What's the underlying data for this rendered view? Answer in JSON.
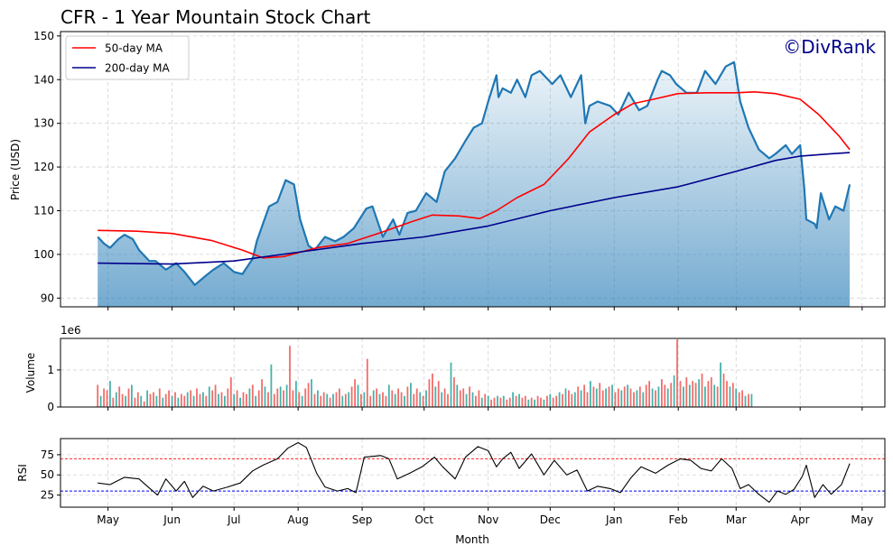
{
  "chart_data": {
    "type": "line",
    "title": "CFR - 1 Year Mountain Stock Chart",
    "watermark": "©DivRank",
    "xlabel": "Month",
    "months": [
      "May",
      "Jun",
      "Jul",
      "Aug",
      "Sep",
      "Oct",
      "Nov",
      "Dec",
      "Jan",
      "Feb",
      "Mar",
      "Apr",
      "May"
    ],
    "date_range": [
      "2024-04-26",
      "2025-04-25"
    ],
    "colors": {
      "price": "#1f77b4",
      "ma50": "#ff0000",
      "ma200": "#00008b",
      "volume_up": "#26a69a",
      "volume_down": "#ef5350",
      "rsi": "#000000",
      "overbought": "#ff0000",
      "oversold": "#0000ff"
    },
    "price_panel": {
      "ylabel": "Price (USD)",
      "ylim": [
        88,
        151
      ],
      "yticks": [
        "90",
        "100",
        "110",
        "120",
        "130",
        "140",
        "150"
      ],
      "legend_position": "top-left",
      "series": [
        {
          "name": "Price",
          "x": [
            "2024-04-26",
            "2024-04-29",
            "2024-05-02",
            "2024-05-06",
            "2024-05-09",
            "2024-05-13",
            "2024-05-16",
            "2024-05-21",
            "2024-05-24",
            "2024-05-29",
            "2024-06-03",
            "2024-06-07",
            "2024-06-12",
            "2024-06-17",
            "2024-06-21",
            "2024-06-26",
            "2024-07-01",
            "2024-07-05",
            "2024-07-10",
            "2024-07-12",
            "2024-07-15",
            "2024-07-18",
            "2024-07-22",
            "2024-07-26",
            "2024-07-30",
            "2024-08-02",
            "2024-08-06",
            "2024-08-09",
            "2024-08-14",
            "2024-08-19",
            "2024-08-23",
            "2024-08-28",
            "2024-09-03",
            "2024-09-06",
            "2024-09-11",
            "2024-09-16",
            "2024-09-19",
            "2024-09-23",
            "2024-09-27",
            "2024-10-02",
            "2024-10-07",
            "2024-10-11",
            "2024-10-16",
            "2024-10-21",
            "2024-10-25",
            "2024-10-29",
            "2024-11-01",
            "2024-11-05",
            "2024-11-06",
            "2024-11-08",
            "2024-11-12",
            "2024-11-15",
            "2024-11-19",
            "2024-11-22",
            "2024-11-26",
            "2024-12-02",
            "2024-12-06",
            "2024-12-11",
            "2024-12-16",
            "2024-12-18",
            "2024-12-20",
            "2024-12-24",
            "2024-12-30",
            "2025-01-03",
            "2025-01-08",
            "2025-01-13",
            "2025-01-17",
            "2025-01-22",
            "2025-01-24",
            "2025-01-28",
            "2025-01-31",
            "2025-02-05",
            "2025-02-10",
            "2025-02-14",
            "2025-02-19",
            "2025-02-24",
            "2025-02-28",
            "2025-03-03",
            "2025-03-07",
            "2025-03-12",
            "2025-03-17",
            "2025-03-20",
            "2025-03-25",
            "2025-03-28",
            "2025-04-01",
            "2025-04-03",
            "2025-04-04",
            "2025-04-08",
            "2025-04-09",
            "2025-04-11",
            "2025-04-15",
            "2025-04-18",
            "2025-04-22",
            "2025-04-25"
          ],
          "values": [
            104,
            102.5,
            101.5,
            103.5,
            104.5,
            103.5,
            101,
            98.5,
            98.5,
            96.5,
            98,
            96,
            93,
            95,
            96.5,
            98,
            96,
            95.5,
            99,
            103,
            107,
            111,
            112,
            117,
            116,
            108,
            102,
            101,
            104,
            103,
            104,
            106,
            110.5,
            111,
            104,
            108,
            104.5,
            109.5,
            110,
            114,
            112,
            119,
            122,
            126,
            129,
            130,
            135,
            141,
            136,
            138,
            137,
            140,
            136,
            141,
            142,
            139,
            141,
            136,
            141,
            130,
            134,
            135,
            134,
            132,
            137,
            133,
            134,
            140,
            142,
            141,
            139,
            137,
            137,
            142,
            139,
            143,
            144,
            135,
            129,
            124,
            122,
            123,
            125,
            123,
            125,
            115,
            108,
            107,
            106,
            114,
            108,
            111,
            110,
            116
          ]
        },
        {
          "name": "50-day MA",
          "x": [
            "2024-04-26",
            "2024-05-15",
            "2024-06-01",
            "2024-06-20",
            "2024-07-05",
            "2024-07-15",
            "2024-07-25",
            "2024-08-10",
            "2024-08-25",
            "2024-09-10",
            "2024-09-25",
            "2024-10-05",
            "2024-10-18",
            "2024-10-28",
            "2024-11-05",
            "2024-11-15",
            "2024-11-28",
            "2024-12-10",
            "2024-12-20",
            "2025-01-01",
            "2025-01-10",
            "2025-01-20",
            "2025-02-01",
            "2025-02-15",
            "2025-03-01",
            "2025-03-10",
            "2025-03-20",
            "2025-04-01",
            "2025-04-10",
            "2025-04-20",
            "2025-04-25"
          ],
          "values": [
            105.5,
            105.3,
            104.8,
            103.2,
            101,
            99.2,
            99.5,
            101.5,
            102.5,
            105,
            107.5,
            109,
            108.8,
            108.2,
            110,
            113,
            116,
            122,
            128,
            132,
            134.5,
            135.5,
            136.8,
            137,
            137,
            137.2,
            136.8,
            135.5,
            132,
            127,
            124
          ]
        },
        {
          "name": "200-day MA",
          "x": [
            "2024-04-26",
            "2024-06-01",
            "2024-07-01",
            "2024-08-01",
            "2024-09-01",
            "2024-10-01",
            "2024-11-01",
            "2024-12-01",
            "2025-01-01",
            "2025-02-01",
            "2025-03-01",
            "2025-03-20",
            "2025-04-01",
            "2025-04-15",
            "2025-04-25"
          ],
          "values": [
            98,
            97.8,
            98.5,
            100.5,
            102.5,
            104,
            106.5,
            110,
            113,
            115.5,
            119,
            121.5,
            122.5,
            123,
            123.3
          ]
        }
      ]
    },
    "volume_panel": {
      "ylabel": "Volume",
      "scale_label": "1e6",
      "ylim": [
        0,
        1.85
      ],
      "yticks": [
        "0",
        "1"
      ],
      "daily_volume": {
        "start": "2024-04-26",
        "every_n_days": 1.5,
        "values_millions": [
          0.6,
          0.3,
          0.5,
          0.45,
          0.7,
          0.25,
          0.4,
          0.55,
          0.35,
          0.3,
          0.5,
          0.6,
          0.25,
          0.4,
          0.3,
          0.15,
          0.45,
          0.35,
          0.4,
          0.3,
          0.5,
          0.25,
          0.35,
          0.45,
          0.3,
          0.4,
          0.25,
          0.35,
          0.3,
          0.4,
          0.45,
          0.3,
          0.5,
          0.35,
          0.4,
          0.3,
          0.55,
          0.45,
          0.6,
          0.35,
          0.4,
          0.3,
          0.5,
          0.8,
          0.35,
          0.45,
          0.25,
          0.4,
          0.35,
          0.5,
          0.6,
          0.3,
          0.45,
          0.75,
          0.55,
          0.4,
          1.15,
          0.35,
          0.5,
          0.55,
          0.45,
          0.6,
          1.65,
          0.45,
          0.7,
          0.4,
          0.3,
          0.5,
          0.65,
          0.75,
          0.35,
          0.45,
          0.3,
          0.4,
          0.35,
          0.25,
          0.35,
          0.4,
          0.5,
          0.3,
          0.35,
          0.4,
          0.55,
          0.75,
          0.6,
          0.35,
          0.4,
          1.3,
          0.3,
          0.45,
          0.5,
          0.35,
          0.4,
          0.3,
          0.6,
          0.45,
          0.35,
          0.5,
          0.4,
          0.3,
          0.55,
          0.65,
          0.35,
          0.5,
          0.4,
          0.3,
          0.45,
          0.75,
          0.9,
          0.55,
          0.7,
          0.4,
          0.5,
          0.35,
          1.2,
          0.8,
          0.6,
          0.45,
          0.5,
          0.35,
          0.55,
          0.4,
          0.3,
          0.45,
          0.25,
          0.35,
          0.3,
          0.2,
          0.25,
          0.3,
          0.25,
          0.3,
          0.2,
          0.25,
          0.4,
          0.3,
          0.35,
          0.25,
          0.3,
          0.2,
          0.25,
          0.2,
          0.3,
          0.25,
          0.2,
          0.3,
          0.35,
          0.25,
          0.3,
          0.4,
          0.35,
          0.5,
          0.45,
          0.35,
          0.4,
          0.55,
          0.45,
          0.6,
          0.4,
          0.7,
          0.55,
          0.5,
          0.65,
          0.45,
          0.5,
          0.55,
          0.6,
          0.4,
          0.5,
          0.45,
          0.55,
          0.6,
          0.5,
          0.4,
          0.45,
          0.55,
          0.4,
          0.6,
          0.7,
          0.5,
          0.45,
          0.55,
          0.75,
          0.6,
          0.5,
          0.65,
          0.85,
          1.82,
          0.7,
          0.55,
          0.8,
          0.6,
          0.7,
          0.65,
          0.75,
          0.9,
          0.55,
          0.7,
          0.8,
          0.6,
          0.55,
          1.2,
          0.9,
          0.7,
          0.55,
          0.65,
          0.5,
          0.4,
          0.45,
          0.3,
          0.35,
          0.35
        ]
      }
    },
    "rsi_panel": {
      "ylabel": "RSI",
      "ylim": [
        10,
        95
      ],
      "yticks": [
        "25",
        "50",
        "75"
      ],
      "overbought": 70,
      "oversold": 30,
      "series": [
        {
          "name": "RSI",
          "x": [
            "2024-04-26",
            "2024-05-02",
            "2024-05-09",
            "2024-05-16",
            "2024-05-20",
            "2024-05-25",
            "2024-05-29",
            "2024-06-03",
            "2024-06-07",
            "2024-06-11",
            "2024-06-16",
            "2024-06-21",
            "2024-06-28",
            "2024-07-04",
            "2024-07-10",
            "2024-07-15",
            "2024-07-22",
            "2024-07-27",
            "2024-08-01",
            "2024-08-05",
            "2024-08-10",
            "2024-08-14",
            "2024-08-20",
            "2024-08-25",
            "2024-08-29",
            "2024-09-02",
            "2024-09-10",
            "2024-09-14",
            "2024-09-18",
            "2024-09-24",
            "2024-09-30",
            "2024-10-06",
            "2024-10-10",
            "2024-10-16",
            "2024-10-21",
            "2024-10-27",
            "2024-11-01",
            "2024-11-05",
            "2024-11-08",
            "2024-11-12",
            "2024-11-16",
            "2024-11-22",
            "2024-11-28",
            "2024-12-03",
            "2024-12-09",
            "2024-12-14",
            "2024-12-19",
            "2024-12-24",
            "2024-12-30",
            "2025-01-04",
            "2025-01-09",
            "2025-01-14",
            "2025-01-21",
            "2025-01-27",
            "2025-02-02",
            "2025-02-07",
            "2025-02-12",
            "2025-02-17",
            "2025-02-22",
            "2025-02-27",
            "2025-03-03",
            "2025-03-07",
            "2025-03-12",
            "2025-03-17",
            "2025-03-21",
            "2025-03-25",
            "2025-03-29",
            "2025-04-02",
            "2025-04-04",
            "2025-04-08",
            "2025-04-12",
            "2025-04-16",
            "2025-04-21",
            "2025-04-25"
          ],
          "values": [
            40,
            38,
            47,
            45,
            36,
            25,
            45,
            30,
            42,
            22,
            36,
            30,
            35,
            40,
            55,
            62,
            70,
            83,
            90,
            84,
            52,
            35,
            30,
            33,
            28,
            72,
            74,
            70,
            45,
            52,
            60,
            72,
            60,
            45,
            72,
            85,
            80,
            60,
            70,
            78,
            58,
            76,
            50,
            68,
            50,
            56,
            30,
            36,
            33,
            28,
            46,
            60,
            52,
            62,
            70,
            68,
            58,
            55,
            70,
            58,
            33,
            38,
            26,
            16,
            30,
            26,
            32,
            48,
            62,
            22,
            38,
            26,
            38,
            64
          ]
        }
      ]
    }
  }
}
